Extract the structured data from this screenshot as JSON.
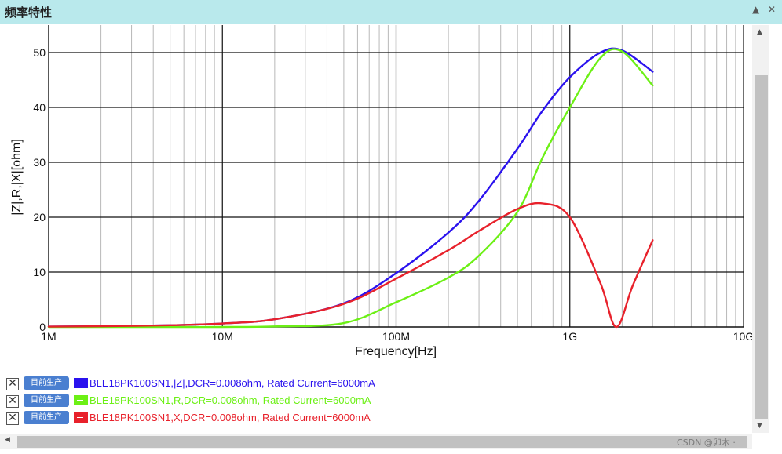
{
  "window": {
    "title": "频率特性",
    "collapse_icon": "▲",
    "close_icon": "✕"
  },
  "chart_data": {
    "type": "line",
    "xscale": "log",
    "xlabel": "Frequency[Hz]",
    "ylabel": "|Z|,R,|X|[ohm]",
    "xlim": [
      1000000,
      10000000000
    ],
    "ylim": [
      0,
      55
    ],
    "x_tick_labels": [
      "1M",
      "10M",
      "100M",
      "1G",
      "10G"
    ],
    "y_ticks": [
      0,
      10,
      20,
      30,
      40,
      50
    ],
    "grid": true,
    "series": [
      {
        "name": "BLE18PK100SN1,|Z|,DCR=0.008ohm, Rated Current=6000mA",
        "color": "#2a12ee",
        "points": [
          [
            1000000,
            0.06
          ],
          [
            2000000,
            0.13
          ],
          [
            5000000,
            0.31
          ],
          [
            10000000,
            0.63
          ],
          [
            20000000,
            1.4
          ],
          [
            50000000,
            4.3
          ],
          [
            100000000,
            9.8
          ],
          [
            200000000,
            17.2
          ],
          [
            300000000,
            23
          ],
          [
            500000000,
            32.5
          ],
          [
            700000000,
            39.5
          ],
          [
            1000000000,
            45.5
          ],
          [
            1500000000,
            50
          ],
          [
            2000000000,
            50.4
          ],
          [
            3000000000,
            46.5
          ]
        ]
      },
      {
        "name": "BLE18PK100SN1,R,DCR=0.008ohm, Rated Current=6000mA",
        "color": "#6cf015",
        "points": [
          [
            1000000,
            0.0
          ],
          [
            2000000,
            0.0
          ],
          [
            5000000,
            0.0
          ],
          [
            10000000,
            0.0
          ],
          [
            20000000,
            0.1
          ],
          [
            50000000,
            0.7
          ],
          [
            100000000,
            4.5
          ],
          [
            200000000,
            9
          ],
          [
            300000000,
            13
          ],
          [
            500000000,
            21
          ],
          [
            700000000,
            31
          ],
          [
            1000000000,
            40
          ],
          [
            1500000000,
            49
          ],
          [
            2000000000,
            50.2
          ],
          [
            3000000000,
            44
          ]
        ]
      },
      {
        "name": "BLE18PK100SN1,X,DCR=0.008ohm, Rated Current=6000mA",
        "color": "#e8212b",
        "points": [
          [
            1000000,
            0.06
          ],
          [
            2000000,
            0.13
          ],
          [
            5000000,
            0.31
          ],
          [
            10000000,
            0.63
          ],
          [
            20000000,
            1.4
          ],
          [
            50000000,
            4.2
          ],
          [
            100000000,
            8.8
          ],
          [
            200000000,
            14
          ],
          [
            300000000,
            17.5
          ],
          [
            500000000,
            21.5
          ],
          [
            700000000,
            22.5
          ],
          [
            1000000000,
            20
          ],
          [
            1500000000,
            8
          ],
          [
            1850000000,
            0
          ],
          [
            2300000000,
            7.5
          ],
          [
            3000000000,
            15.8
          ]
        ]
      }
    ]
  },
  "legend": [
    {
      "checkbox": "✕",
      "badge": "目前生产",
      "label": "BLE18PK100SN1,|Z|,DCR=0.008ohm, Rated Current=6000mA",
      "color": "#2a12ee"
    },
    {
      "checkbox": "✕",
      "badge": "目前生产",
      "label": "BLE18PK100SN1,R,DCR=0.008ohm, Rated Current=6000mA",
      "color": "#6cf015"
    },
    {
      "checkbox": "✕",
      "badge": "目前生产",
      "label": "BLE18PK100SN1,X,DCR=0.008ohm, Rated Current=6000mA",
      "color": "#e8212b"
    }
  ],
  "scrollbars": {
    "up": "▲",
    "down": "▼",
    "left": "◀"
  },
  "watermark": "CSDN @卯木 ·"
}
